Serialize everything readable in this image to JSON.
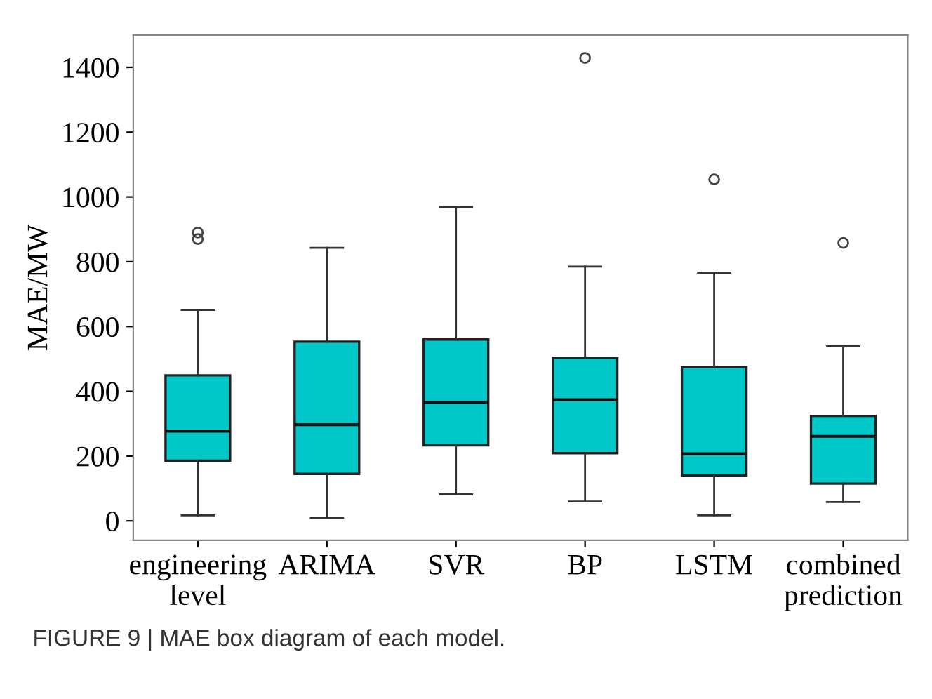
{
  "chart_data": {
    "type": "box",
    "ylabel": "MAE/MW",
    "categories": [
      "engineering\nlevel",
      "ARIMA",
      "SVR",
      "BP",
      "LSTM",
      "combined\nprediction"
    ],
    "color": "#00c8c8",
    "boxes": [
      {
        "low": 17,
        "q1": 186,
        "median": 277,
        "q3": 449,
        "high": 651,
        "outliers": [
          870,
          890
        ]
      },
      {
        "low": 10,
        "q1": 145,
        "median": 297,
        "q3": 553,
        "high": 843
      },
      {
        "low": 82,
        "q1": 233,
        "median": 366,
        "q3": 560,
        "high": 969
      },
      {
        "low": 60,
        "q1": 209,
        "median": 374,
        "q3": 504,
        "high": 785,
        "outliers": [
          1429
        ]
      },
      {
        "low": 17,
        "q1": 140,
        "median": 207,
        "q3": 475,
        "high": 766,
        "outliers": [
          1054
        ]
      },
      {
        "low": 58,
        "q1": 115,
        "median": 261,
        "q3": 324,
        "high": 539,
        "outliers": [
          858
        ]
      }
    ],
    "ylim": [
      -60,
      1500
    ],
    "yticks": [
      0,
      200,
      400,
      600,
      800,
      1000,
      1200,
      1400
    ],
    "grid": false,
    "annotations": [
      "FIGURE 9 | MAE box diagram of each model."
    ]
  }
}
